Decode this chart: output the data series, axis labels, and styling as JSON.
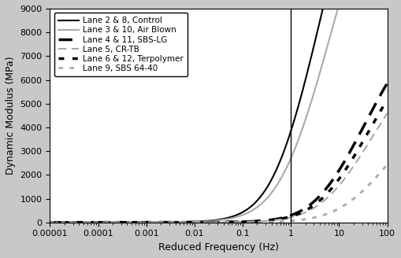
{
  "title": "",
  "xlabel": "Reduced Frequency (Hz)",
  "ylabel": "Dynamic Modulus (MPa)",
  "xlim": [
    1e-05,
    100
  ],
  "ylim": [
    0,
    9000
  ],
  "yticks": [
    0,
    1000,
    2000,
    3000,
    4000,
    5000,
    6000,
    7000,
    8000,
    9000
  ],
  "xtick_values": [
    1e-05,
    0.0001,
    0.001,
    0.01,
    0.1,
    1,
    10,
    100
  ],
  "xtick_labels": [
    "0.00001",
    "0.0001",
    "0.001",
    "0.01",
    "0.1",
    "1",
    "10",
    "100"
  ],
  "vline_x": 1,
  "curves": [
    {
      "label": "Lane 2 & 8, Control",
      "color": "#000000",
      "linestyle": "solid",
      "linewidth": 1.5,
      "Emax": 22000,
      "Emin": 3,
      "inflection": -1.2,
      "steepness": 0.85
    },
    {
      "label": "Lane 3 & 10, Air Blown",
      "color": "#aaaaaa",
      "linestyle": "solid",
      "linewidth": 1.5,
      "Emax": 20000,
      "Emin": 3,
      "inflection": -1.1,
      "steepness": 0.9
    },
    {
      "label": "Lane 4 & 11, SBS-LG",
      "color": "#000000",
      "linestyle": "dashed",
      "linewidth": 2.5,
      "Emax": 10000,
      "Emin": 2,
      "inflection": -0.3,
      "steepness": 0.85
    },
    {
      "label": "Lane 5, CR-TB",
      "color": "#aaaaaa",
      "linestyle": "dashed",
      "linewidth": 1.5,
      "Emax": 9000,
      "Emin": 2,
      "inflection": -0.2,
      "steepness": 0.9
    },
    {
      "label": "Lane 6 & 12, Terpolymer",
      "color": "#000000",
      "linestyle": "dotted",
      "linewidth": 2.5,
      "Emax": 9500,
      "Emin": 2,
      "inflection": -0.25,
      "steepness": 0.88
    },
    {
      "label": "Lane 9, SBS 64-40",
      "color": "#aaaaaa",
      "linestyle": "dotted",
      "linewidth": 2.0,
      "Emax": 7000,
      "Emin": 1,
      "inflection": 0.1,
      "steepness": 0.95
    }
  ],
  "fig_facecolor": "#c8c8c8",
  "ax_facecolor": "#ffffff",
  "legend_fontsize": 7.5,
  "axis_fontsize": 9,
  "tick_fontsize": 8
}
